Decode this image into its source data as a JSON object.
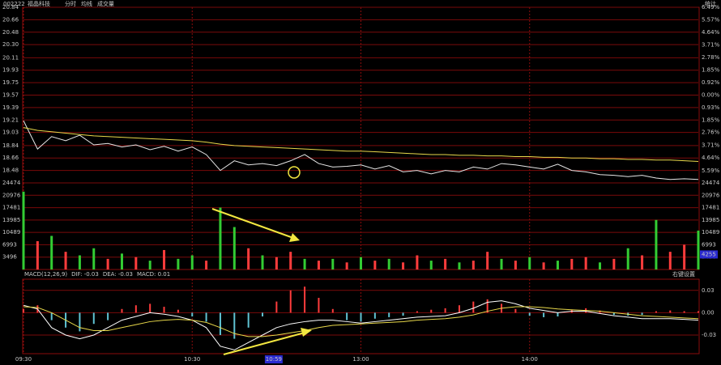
{
  "header": {
    "code": "002222",
    "name": "福晶科技",
    "tabs": [
      {
        "text": "分时",
        "color": "#e0e0e0"
      },
      {
        "text": "均线",
        "color": "#e8d84a"
      },
      {
        "text": "成交量",
        "color": "#e08a2a"
      }
    ],
    "stats": "统计"
  },
  "chart_data": [
    {
      "type": "line",
      "xlim": [
        0,
        240
      ],
      "ylim": [
        18.3,
        20.84
      ],
      "y2lim": [
        -6.49,
        6.49
      ],
      "grid": true,
      "grid_color": "#7a0a0a",
      "up_color": "#ff3c3c",
      "down_color": "#2ecc40",
      "flat_color": "#ffffff",
      "yticks": [
        20.84,
        20.66,
        20.48,
        {
          "value": 20.3,
          "label": "20.30"
        },
        20.11,
        19.93,
        19.75,
        19.57,
        19.39,
        19.21,
        19.03,
        18.84,
        18.66,
        18.48
      ],
      "y2ticks": [
        {
          "value": 6.49,
          "label": "6.49%"
        },
        {
          "value": 5.57,
          "label": "5.57%"
        },
        {
          "value": 4.64,
          "label": "4.64%"
        },
        {
          "value": 3.71,
          "label": "3.71%"
        },
        {
          "value": 2.78,
          "label": "2.78%"
        },
        {
          "value": 1.85,
          "label": "1.85%"
        },
        {
          "value": 0.92,
          "label": "0.92%"
        },
        {
          "value": 0,
          "label": "0.00%"
        },
        {
          "value": -0.93,
          "label": "0.93%"
        },
        {
          "value": -1.85,
          "label": "1.85%"
        },
        {
          "value": -2.76,
          "label": "2.76%"
        },
        {
          "value": -3.71,
          "label": "3.71%"
        },
        {
          "value": -4.64,
          "label": "4.64%"
        },
        {
          "value": -5.59,
          "label": "5.59%"
        }
      ],
      "x": [
        0,
        5,
        10,
        15,
        20,
        25,
        30,
        35,
        40,
        45,
        50,
        55,
        60,
        65,
        70,
        75,
        80,
        85,
        90,
        95,
        100,
        105,
        110,
        115,
        120,
        125,
        130,
        135,
        140,
        145,
        150,
        155,
        160,
        165,
        170,
        175,
        180,
        185,
        190,
        195,
        200,
        205,
        210,
        215,
        220,
        225,
        230,
        235,
        240
      ],
      "series": [
        {
          "color": "#e6e6e6",
          "values": [
            19.2,
            18.79,
            18.97,
            18.91,
            18.99,
            18.85,
            18.87,
            18.82,
            18.85,
            18.78,
            18.83,
            18.76,
            18.82,
            18.71,
            18.48,
            18.62,
            18.56,
            18.58,
            18.55,
            18.62,
            18.71,
            18.58,
            18.53,
            18.54,
            18.56,
            18.5,
            18.55,
            18.46,
            18.48,
            18.43,
            18.48,
            18.46,
            18.53,
            18.5,
            18.58,
            18.56,
            18.53,
            18.5,
            18.57,
            18.48,
            18.46,
            18.42,
            18.41,
            18.39,
            18.41,
            18.37,
            18.35,
            18.36,
            18.35
          ]
        },
        {
          "color": "#e8d84a",
          "values": [
            19.1,
            19.06,
            19.04,
            19.02,
            19.0,
            18.98,
            18.97,
            18.96,
            18.95,
            18.94,
            18.93,
            18.92,
            18.91,
            18.89,
            18.86,
            18.84,
            18.83,
            18.82,
            18.81,
            18.8,
            18.79,
            18.78,
            18.77,
            18.76,
            18.76,
            18.75,
            18.74,
            18.73,
            18.72,
            18.71,
            18.71,
            18.7,
            18.7,
            18.69,
            18.69,
            18.68,
            18.68,
            18.67,
            18.67,
            18.66,
            18.66,
            18.65,
            18.65,
            18.64,
            18.64,
            18.63,
            18.63,
            18.62,
            18.61
          ]
        }
      ]
    },
    {
      "type": "bar",
      "xlim": [
        0,
        240
      ],
      "ylim": [
        0,
        24474
      ],
      "grid": true,
      "grid_color": "#7a0a0a",
      "yticks": [
        24474,
        20976,
        17481,
        13985,
        10489,
        6993,
        3496
      ],
      "cursor_value": 4255,
      "x": [
        0,
        5,
        10,
        15,
        20,
        25,
        30,
        35,
        40,
        45,
        50,
        55,
        60,
        65,
        70,
        75,
        80,
        85,
        90,
        95,
        100,
        105,
        110,
        115,
        120,
        125,
        130,
        135,
        140,
        145,
        150,
        155,
        160,
        165,
        170,
        175,
        180,
        185,
        190,
        195,
        200,
        205,
        210,
        215,
        220,
        225,
        230,
        235,
        240
      ],
      "values": [
        22000,
        8000,
        9500,
        5000,
        4000,
        6000,
        3000,
        4500,
        3500,
        2500,
        5500,
        3000,
        4000,
        2500,
        17500,
        12000,
        6000,
        4000,
        3500,
        5000,
        3000,
        2500,
        3000,
        2000,
        3500,
        2500,
        3000,
        2000,
        4000,
        2500,
        3000,
        2000,
        2500,
        5000,
        3000,
        2500,
        3500,
        2000,
        2500,
        3000,
        3500,
        2000,
        3000,
        6000,
        4000,
        14000,
        5000,
        7000,
        11000
      ],
      "colors": [
        "#33cc33",
        "#ff3c3c",
        "#33cc33",
        "#ff3c3c",
        "#33cc33",
        "#33cc33",
        "#ff3c3c",
        "#33cc33",
        "#ff3c3c",
        "#33cc33",
        "#ff3c3c",
        "#33cc33",
        "#33cc33",
        "#ff3c3c",
        "#33cc33",
        "#33cc33",
        "#ff3c3c",
        "#33cc33",
        "#ff3c3c",
        "#ff3c3c",
        "#33cc33",
        "#ff3c3c",
        "#33cc33",
        "#ff3c3c",
        "#33cc33",
        "#ff3c3c",
        "#33cc33",
        "#ff3c3c",
        "#ff3c3c",
        "#33cc33",
        "#ff3c3c",
        "#33cc33",
        "#ff3c3c",
        "#ff3c3c",
        "#33cc33",
        "#ff3c3c",
        "#33cc33",
        "#ff3c3c",
        "#33cc33",
        "#ff3c3c",
        "#ff3c3c",
        "#33cc33",
        "#ff3c3c",
        "#33cc33",
        "#ff3c3c",
        "#33cc33",
        "#ff3c3c",
        "#ff3c3c",
        "#33cc33"
      ]
    },
    {
      "type": "macd",
      "xlim": [
        0,
        240
      ],
      "ylim": [
        -0.055,
        0.045
      ],
      "grid": true,
      "grid_color": "#7a0a0a",
      "legend": [
        {
          "text": "MACD(12,26,9)",
          "color": "#b0b0b0"
        },
        {
          "text": "DIF: -0.03",
          "color": "#ffffff"
        },
        {
          "text": "DEA: -0.03",
          "color": "#e8d84a"
        },
        {
          "text": "MACD: 0.01",
          "color": "#e040e0"
        }
      ],
      "settings_label": "右键设置",
      "pos_color": "#ff3c3c",
      "neg_color": "#5fc3d3",
      "yticks": [
        0.03,
        {
          "value": 0,
          "label": "0.00"
        },
        -0.03
      ],
      "xticks": [
        {
          "value": 0,
          "label": "09:30"
        },
        {
          "value": 60,
          "label": "10:30"
        },
        {
          "value": 120,
          "label": "13:00"
        },
        {
          "value": 180,
          "label": "14:00"
        }
      ],
      "cursor": {
        "value": 89,
        "label": "10:59"
      },
      "x": [
        0,
        5,
        10,
        15,
        20,
        25,
        30,
        35,
        40,
        45,
        50,
        55,
        60,
        65,
        70,
        75,
        80,
        85,
        90,
        95,
        100,
        105,
        110,
        115,
        120,
        125,
        130,
        135,
        140,
        145,
        150,
        155,
        160,
        165,
        170,
        175,
        180,
        185,
        190,
        195,
        200,
        205,
        210,
        215,
        220,
        225,
        230,
        235,
        240
      ],
      "histogram": [
        0.005,
        0.01,
        -0.01,
        -0.02,
        -0.025,
        -0.015,
        -0.01,
        0.005,
        0.01,
        0.012,
        0.008,
        0.004,
        -0.005,
        -0.012,
        -0.03,
        -0.035,
        -0.02,
        -0.005,
        0.015,
        0.03,
        0.035,
        0.02,
        0.005,
        -0.01,
        -0.012,
        -0.008,
        -0.006,
        -0.004,
        0.002,
        0.004,
        0.006,
        0.01,
        0.015,
        0.018,
        0.012,
        0.005,
        -0.004,
        -0.006,
        -0.005,
        0.004,
        0.006,
        0.003,
        -0.003,
        -0.004,
        -0.003,
        0.002,
        0.003,
        0.002,
        0.002
      ],
      "series": [
        {
          "color": "#ffffff",
          "values": [
            0.01,
            0.005,
            -0.02,
            -0.03,
            -0.035,
            -0.03,
            -0.02,
            -0.01,
            -0.005,
            0,
            -0.002,
            -0.005,
            -0.01,
            -0.02,
            -0.045,
            -0.05,
            -0.04,
            -0.03,
            -0.02,
            -0.015,
            -0.012,
            -0.01,
            -0.01,
            -0.012,
            -0.014,
            -0.012,
            -0.01,
            -0.008,
            -0.006,
            -0.005,
            -0.004,
            0,
            0.006,
            0.014,
            0.016,
            0.012,
            0.006,
            0.003,
            0,
            0.002,
            0.002,
            -0.001,
            -0.004,
            -0.006,
            -0.008,
            -0.008,
            -0.008,
            -0.009,
            -0.01
          ]
        },
        {
          "color": "#e8d84a",
          "values": [
            0.008,
            0.007,
            0,
            -0.01,
            -0.02,
            -0.024,
            -0.024,
            -0.02,
            -0.016,
            -0.012,
            -0.01,
            -0.009,
            -0.01,
            -0.013,
            -0.02,
            -0.028,
            -0.032,
            -0.032,
            -0.03,
            -0.027,
            -0.024,
            -0.02,
            -0.017,
            -0.016,
            -0.015,
            -0.014,
            -0.013,
            -0.012,
            -0.01,
            -0.009,
            -0.008,
            -0.006,
            -0.003,
            0.002,
            0.006,
            0.008,
            0.008,
            0.007,
            0.005,
            0.004,
            0.003,
            0.002,
            0,
            -0.002,
            -0.004,
            -0.005,
            -0.006,
            -0.007,
            -0.008
          ]
        }
      ]
    }
  ]
}
